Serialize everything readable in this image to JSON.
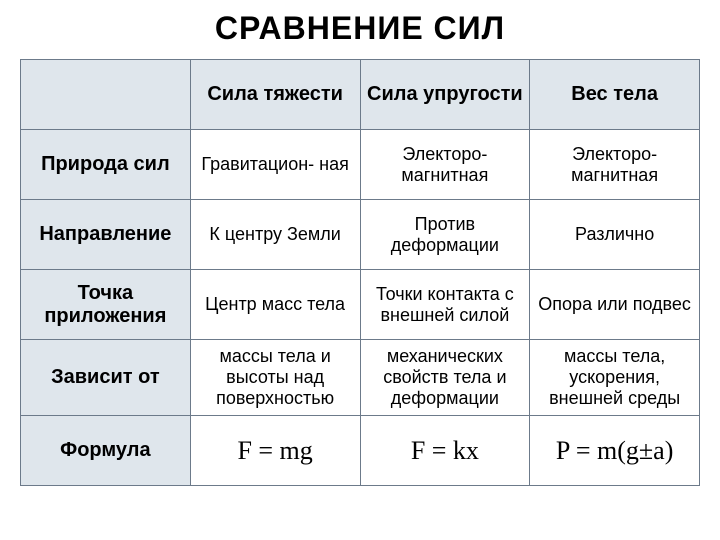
{
  "title": "СРАВНЕНИЕ  СИЛ",
  "table": {
    "columns": [
      "",
      "Сила тяжести",
      "Сила упругости",
      "Вес тела"
    ],
    "rowHeaders": [
      "Природа сил",
      "Направление",
      "Точка приложения",
      "Зависит от",
      "Формула"
    ],
    "rows": [
      [
        "Гравитацион-\nная",
        "Электоро-\nмагнитная",
        "Электоро-\nмагнитная"
      ],
      [
        "К центру Земли",
        "Против деформации",
        "Различно"
      ],
      [
        "Центр масс тела",
        "Точки контакта с внешней силой",
        "Опора или подвес"
      ],
      [
        "массы тела и высоты над поверхностью",
        "механических свойств тела и деформации",
        "массы тела, ускорения, внешней среды"
      ],
      [
        "F = mg",
        "F = kx",
        "P = m(g±a)"
      ]
    ],
    "header_bg": "#dfe6ec",
    "cell_bg": "#ffffff",
    "border_color": "#6c7a8a",
    "title_fontsize": 32,
    "header_fontsize": 20,
    "cell_fontsize": 18,
    "formula_fontsize": 26,
    "column_widths": [
      "25%",
      "25%",
      "25%",
      "25%"
    ]
  }
}
